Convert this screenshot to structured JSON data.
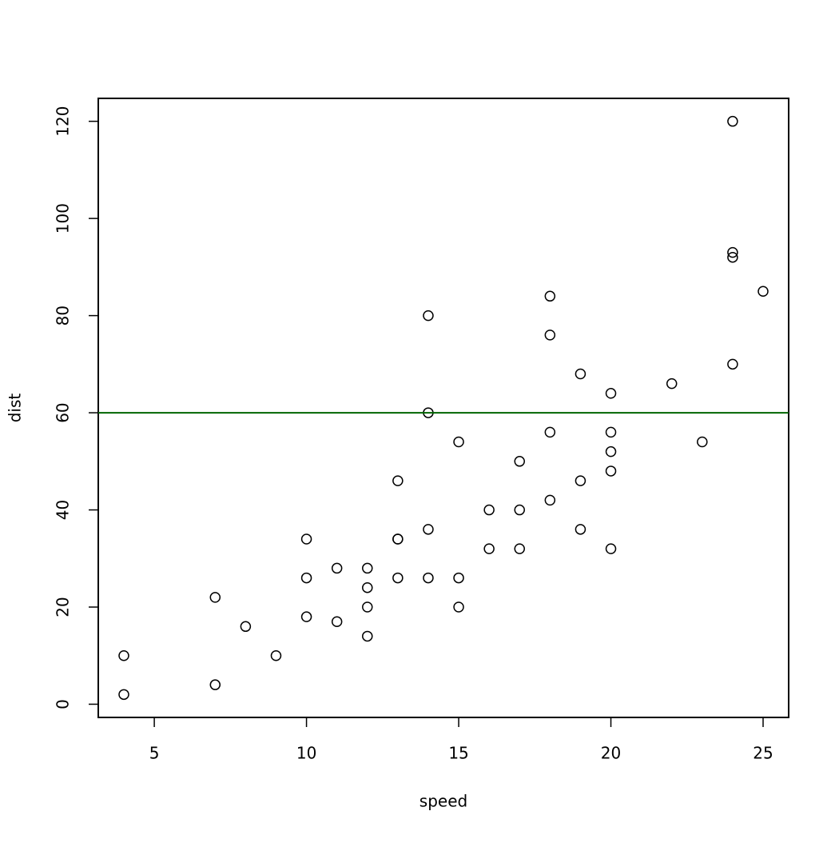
{
  "chart_data": {
    "type": "scatter",
    "x_label": "speed",
    "y_label": "dist",
    "x": [
      4,
      4,
      7,
      7,
      8,
      9,
      10,
      10,
      10,
      11,
      11,
      12,
      12,
      12,
      12,
      13,
      13,
      13,
      13,
      14,
      14,
      14,
      14,
      15,
      15,
      15,
      16,
      16,
      17,
      17,
      17,
      18,
      18,
      18,
      18,
      19,
      19,
      19,
      20,
      20,
      20,
      20,
      20,
      22,
      23,
      24,
      24,
      24,
      24,
      25
    ],
    "values": [
      2,
      10,
      4,
      22,
      16,
      10,
      18,
      26,
      34,
      17,
      28,
      14,
      20,
      24,
      28,
      26,
      34,
      34,
      46,
      26,
      36,
      60,
      80,
      20,
      26,
      54,
      32,
      40,
      32,
      40,
      50,
      42,
      56,
      76,
      84,
      36,
      46,
      68,
      32,
      48,
      52,
      56,
      64,
      66,
      54,
      70,
      92,
      93,
      120,
      85
    ],
    "color": "#000000",
    "xlim": [
      3.16,
      25.84
    ],
    "ylim": [
      -2.72,
      124.72
    ],
    "xticks": [
      5,
      10,
      15,
      20,
      25
    ],
    "yticks": [
      0,
      20,
      40,
      60,
      80,
      100,
      120
    ],
    "hline": {
      "value": 60,
      "color": "#006400"
    }
  }
}
